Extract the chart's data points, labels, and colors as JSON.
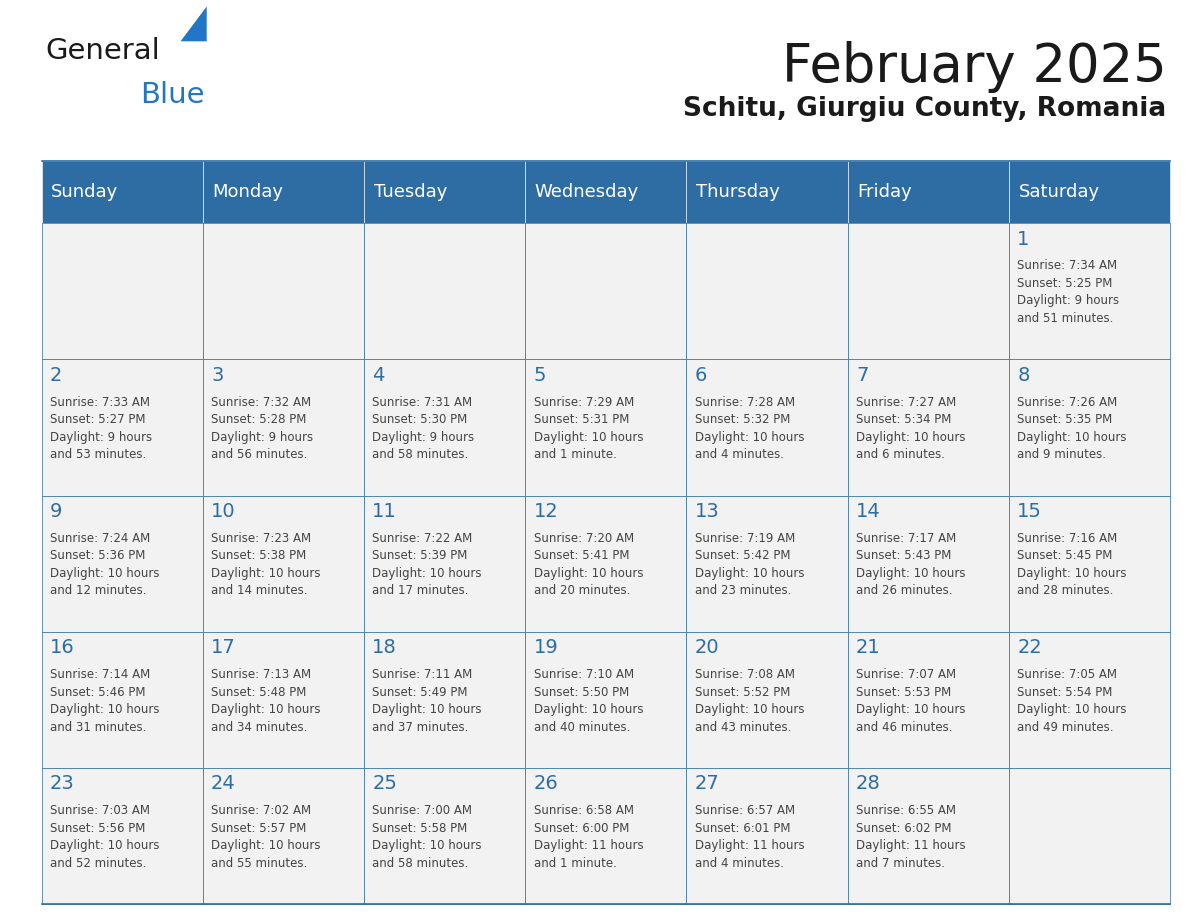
{
  "title": "February 2025",
  "subtitle": "Schitu, Giurgiu County, Romania",
  "header_bg": "#2E6DA4",
  "header_text": "#FFFFFF",
  "cell_bg": "#F2F2F2",
  "day_number_color": "#2E6DA4",
  "cell_text_color": "#444444",
  "border_color": "#2E6DA4",
  "line_color": "#AAAAAA",
  "days_of_week": [
    "Sunday",
    "Monday",
    "Tuesday",
    "Wednesday",
    "Thursday",
    "Friday",
    "Saturday"
  ],
  "weeks": [
    [
      {
        "day": null,
        "info": null
      },
      {
        "day": null,
        "info": null
      },
      {
        "day": null,
        "info": null
      },
      {
        "day": null,
        "info": null
      },
      {
        "day": null,
        "info": null
      },
      {
        "day": null,
        "info": null
      },
      {
        "day": 1,
        "info": "Sunrise: 7:34 AM\nSunset: 5:25 PM\nDaylight: 9 hours\nand 51 minutes."
      }
    ],
    [
      {
        "day": 2,
        "info": "Sunrise: 7:33 AM\nSunset: 5:27 PM\nDaylight: 9 hours\nand 53 minutes."
      },
      {
        "day": 3,
        "info": "Sunrise: 7:32 AM\nSunset: 5:28 PM\nDaylight: 9 hours\nand 56 minutes."
      },
      {
        "day": 4,
        "info": "Sunrise: 7:31 AM\nSunset: 5:30 PM\nDaylight: 9 hours\nand 58 minutes."
      },
      {
        "day": 5,
        "info": "Sunrise: 7:29 AM\nSunset: 5:31 PM\nDaylight: 10 hours\nand 1 minute."
      },
      {
        "day": 6,
        "info": "Sunrise: 7:28 AM\nSunset: 5:32 PM\nDaylight: 10 hours\nand 4 minutes."
      },
      {
        "day": 7,
        "info": "Sunrise: 7:27 AM\nSunset: 5:34 PM\nDaylight: 10 hours\nand 6 minutes."
      },
      {
        "day": 8,
        "info": "Sunrise: 7:26 AM\nSunset: 5:35 PM\nDaylight: 10 hours\nand 9 minutes."
      }
    ],
    [
      {
        "day": 9,
        "info": "Sunrise: 7:24 AM\nSunset: 5:36 PM\nDaylight: 10 hours\nand 12 minutes."
      },
      {
        "day": 10,
        "info": "Sunrise: 7:23 AM\nSunset: 5:38 PM\nDaylight: 10 hours\nand 14 minutes."
      },
      {
        "day": 11,
        "info": "Sunrise: 7:22 AM\nSunset: 5:39 PM\nDaylight: 10 hours\nand 17 minutes."
      },
      {
        "day": 12,
        "info": "Sunrise: 7:20 AM\nSunset: 5:41 PM\nDaylight: 10 hours\nand 20 minutes."
      },
      {
        "day": 13,
        "info": "Sunrise: 7:19 AM\nSunset: 5:42 PM\nDaylight: 10 hours\nand 23 minutes."
      },
      {
        "day": 14,
        "info": "Sunrise: 7:17 AM\nSunset: 5:43 PM\nDaylight: 10 hours\nand 26 minutes."
      },
      {
        "day": 15,
        "info": "Sunrise: 7:16 AM\nSunset: 5:45 PM\nDaylight: 10 hours\nand 28 minutes."
      }
    ],
    [
      {
        "day": 16,
        "info": "Sunrise: 7:14 AM\nSunset: 5:46 PM\nDaylight: 10 hours\nand 31 minutes."
      },
      {
        "day": 17,
        "info": "Sunrise: 7:13 AM\nSunset: 5:48 PM\nDaylight: 10 hours\nand 34 minutes."
      },
      {
        "day": 18,
        "info": "Sunrise: 7:11 AM\nSunset: 5:49 PM\nDaylight: 10 hours\nand 37 minutes."
      },
      {
        "day": 19,
        "info": "Sunrise: 7:10 AM\nSunset: 5:50 PM\nDaylight: 10 hours\nand 40 minutes."
      },
      {
        "day": 20,
        "info": "Sunrise: 7:08 AM\nSunset: 5:52 PM\nDaylight: 10 hours\nand 43 minutes."
      },
      {
        "day": 21,
        "info": "Sunrise: 7:07 AM\nSunset: 5:53 PM\nDaylight: 10 hours\nand 46 minutes."
      },
      {
        "day": 22,
        "info": "Sunrise: 7:05 AM\nSunset: 5:54 PM\nDaylight: 10 hours\nand 49 minutes."
      }
    ],
    [
      {
        "day": 23,
        "info": "Sunrise: 7:03 AM\nSunset: 5:56 PM\nDaylight: 10 hours\nand 52 minutes."
      },
      {
        "day": 24,
        "info": "Sunrise: 7:02 AM\nSunset: 5:57 PM\nDaylight: 10 hours\nand 55 minutes."
      },
      {
        "day": 25,
        "info": "Sunrise: 7:00 AM\nSunset: 5:58 PM\nDaylight: 10 hours\nand 58 minutes."
      },
      {
        "day": 26,
        "info": "Sunrise: 6:58 AM\nSunset: 6:00 PM\nDaylight: 11 hours\nand 1 minute."
      },
      {
        "day": 27,
        "info": "Sunrise: 6:57 AM\nSunset: 6:01 PM\nDaylight: 11 hours\nand 4 minutes."
      },
      {
        "day": 28,
        "info": "Sunrise: 6:55 AM\nSunset: 6:02 PM\nDaylight: 11 hours\nand 7 minutes."
      },
      {
        "day": null,
        "info": null
      }
    ]
  ],
  "logo_general_color": "#1a1a1a",
  "logo_blue_color": "#2176C8",
  "logo_triangle_color": "#2176C8",
  "title_color": "#1a1a1a",
  "subtitle_color": "#1a1a1a",
  "title_fontsize": 38,
  "subtitle_fontsize": 19,
  "header_fontsize": 13,
  "day_num_fontsize": 14,
  "cell_info_fontsize": 8.5
}
